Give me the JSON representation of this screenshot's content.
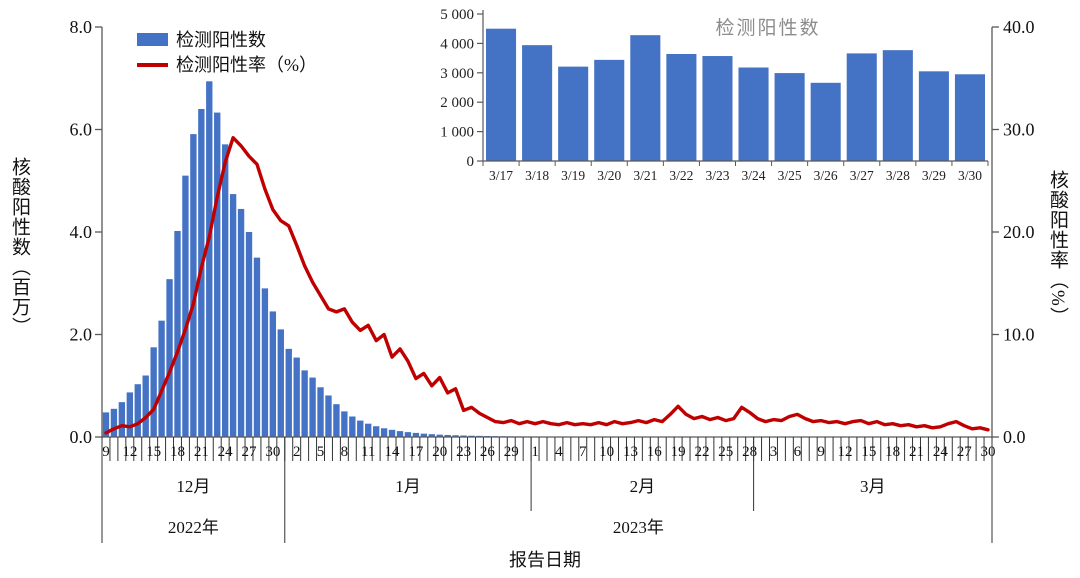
{
  "chart_data": [
    {
      "type": "bar+line",
      "legend": [
        {
          "label": "检测阳性数",
          "type": "bar",
          "color": "#4472C4"
        },
        {
          "label": "检测阳性率（%）",
          "type": "line",
          "color": "#C00000"
        }
      ],
      "ylabel_left": "核酸阳性数（百万）",
      "ylabel_right": "核酸阳性率（%）",
      "xlabel": "报告日期",
      "ylim_left": [
        0,
        8
      ],
      "yticks_left": [
        "0.0",
        "2.0",
        "4.0",
        "6.0",
        "8.0"
      ],
      "ylim_right": [
        0,
        40
      ],
      "yticks_right": [
        "0.0",
        "10.0",
        "20.0",
        "30.0",
        "40.0"
      ],
      "x_tick_interval_days": 3,
      "x_tick_labels": [
        "9",
        "12",
        "15",
        "18",
        "21",
        "24",
        "27",
        "30",
        "2",
        "5",
        "8",
        "11",
        "14",
        "17",
        "20",
        "23",
        "26",
        "29",
        "1",
        "4",
        "7",
        "10",
        "13",
        "16",
        "19",
        "22",
        "25",
        "28",
        "3",
        "6",
        "9",
        "12",
        "15",
        "18",
        "21",
        "24",
        "27",
        "30"
      ],
      "months": [
        {
          "label": "12月",
          "start": 0,
          "end": 22
        },
        {
          "label": "1月",
          "start": 23,
          "end": 53
        },
        {
          "label": "2月",
          "start": 54,
          "end": 81
        },
        {
          "label": "3月",
          "start": 82,
          "end": 111
        }
      ],
      "years": [
        {
          "label": "2022年",
          "start": 0,
          "end": 22
        },
        {
          "label": "2023年",
          "start": 23,
          "end": 111
        }
      ],
      "bar_series": {
        "name": "检测阳性数",
        "unit": "百万",
        "values": [
          0.48,
          0.55,
          0.68,
          0.87,
          1.03,
          1.2,
          1.75,
          2.27,
          3.08,
          4.02,
          5.1,
          5.91,
          6.4,
          6.94,
          6.33,
          5.71,
          4.74,
          4.45,
          4.0,
          3.5,
          2.9,
          2.45,
          2.1,
          1.72,
          1.55,
          1.3,
          1.16,
          0.97,
          0.81,
          0.64,
          0.5,
          0.4,
          0.32,
          0.26,
          0.21,
          0.17,
          0.14,
          0.115,
          0.095,
          0.08,
          0.065,
          0.055,
          0.046,
          0.04,
          0.034,
          0.029,
          0.025,
          0.022,
          0.019,
          0.017,
          0.015,
          0.013,
          0.012,
          0.011,
          0.01,
          0.0095,
          0.009,
          0.0085,
          0.008,
          0.008,
          0.0075,
          0.007,
          0.007,
          0.0065,
          0.0065,
          0.006,
          0.006,
          0.0055,
          0.0055,
          0.005,
          0.005,
          0.005,
          0.0048,
          0.0046,
          0.0045,
          0.0044,
          0.0043,
          0.0042,
          0.0041,
          0.004,
          0.004,
          0.0039,
          0.0038,
          0.0037,
          0.0036,
          0.0035,
          0.0035,
          0.0034,
          0.0034,
          0.0033,
          0.0033,
          0.0032,
          0.0032,
          0.0031,
          0.0031,
          0.003,
          0.003,
          0.0029,
          0.0045,
          0.0039,
          0.0032,
          0.0034,
          0.0043,
          0.0036,
          0.0036,
          0.0032,
          0.003,
          0.0027,
          0.0037,
          0.0038,
          0.003,
          0.003
        ]
      },
      "line_series": {
        "name": "检测阳性率（%）",
        "values": [
          0.4,
          0.8,
          1.1,
          1.0,
          1.3,
          1.9,
          2.7,
          4.5,
          6.3,
          8.3,
          10.5,
          13.0,
          16.5,
          19.5,
          23.4,
          26.8,
          29.2,
          28.4,
          27.4,
          26.6,
          24.2,
          22.2,
          21.1,
          20.6,
          18.7,
          16.7,
          15.1,
          13.8,
          12.5,
          12.2,
          12.5,
          11.2,
          10.4,
          10.9,
          9.4,
          10.0,
          7.8,
          8.6,
          7.4,
          5.7,
          6.2,
          5.0,
          5.8,
          4.3,
          4.7,
          2.6,
          2.9,
          2.3,
          1.9,
          1.5,
          1.4,
          1.6,
          1.3,
          1.5,
          1.3,
          1.5,
          1.3,
          1.2,
          1.4,
          1.2,
          1.3,
          1.2,
          1.4,
          1.2,
          1.5,
          1.3,
          1.4,
          1.6,
          1.4,
          1.7,
          1.5,
          2.2,
          3.0,
          2.2,
          1.8,
          2.0,
          1.7,
          1.9,
          1.6,
          1.8,
          2.9,
          2.4,
          1.8,
          1.5,
          1.7,
          1.6,
          2.0,
          2.2,
          1.8,
          1.5,
          1.6,
          1.4,
          1.5,
          1.3,
          1.5,
          1.6,
          1.3,
          1.5,
          1.2,
          1.3,
          1.1,
          1.2,
          1.0,
          1.1,
          0.9,
          1.0,
          1.3,
          1.5,
          1.1,
          0.8,
          0.9,
          0.7
        ]
      }
    },
    {
      "type": "bar",
      "title": "检测阳性数",
      "title_color": "#8c8c8c",
      "bar_color": "#4472C4",
      "categories": [
        "3/17",
        "3/18",
        "3/19",
        "3/20",
        "3/21",
        "3/22",
        "3/23",
        "3/24",
        "3/25",
        "3/26",
        "3/27",
        "3/28",
        "3/29",
        "3/30"
      ],
      "values": [
        4500,
        3940,
        3210,
        3440,
        4280,
        3640,
        3570,
        3180,
        2990,
        2660,
        3660,
        3770,
        3050,
        2950
      ],
      "yticks": [
        "0",
        "1 000",
        "2 000",
        "3 000",
        "4 000",
        "5 000"
      ],
      "ylim": [
        0,
        5000
      ]
    }
  ]
}
